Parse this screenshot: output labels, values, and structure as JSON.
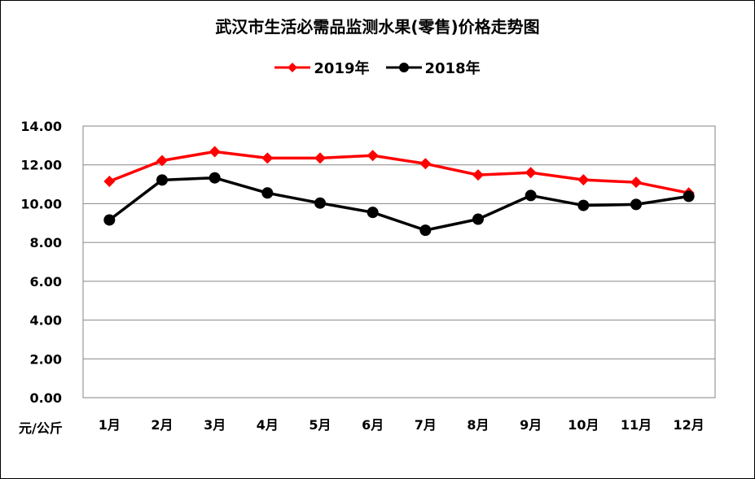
{
  "chart_data": {
    "type": "line",
    "title": "武汉市生活必需品监测水果(零售)价格走势图",
    "ylabel": "元/公斤",
    "xlabel": "",
    "categories": [
      "1月",
      "2月",
      "3月",
      "4月",
      "5月",
      "6月",
      "7月",
      "8月",
      "9月",
      "10月",
      "11月",
      "12月"
    ],
    "ylim": [
      0,
      14
    ],
    "yticks": [
      "0.00",
      "2.00",
      "4.00",
      "6.00",
      "8.00",
      "10.00",
      "12.00",
      "14.00"
    ],
    "grid": true,
    "legend_position": "top-center",
    "series": [
      {
        "name": "2019年",
        "color": "#ff0000",
        "marker": "diamond",
        "values": [
          11.15,
          12.22,
          12.68,
          12.35,
          12.35,
          12.48,
          12.06,
          11.48,
          11.6,
          11.23,
          11.1,
          10.55
        ]
      },
      {
        "name": "2018年",
        "color": "#000000",
        "marker": "circle",
        "values": [
          9.16,
          11.22,
          11.33,
          10.55,
          10.03,
          9.55,
          8.63,
          9.2,
          10.42,
          9.91,
          9.96,
          10.38
        ]
      }
    ]
  }
}
